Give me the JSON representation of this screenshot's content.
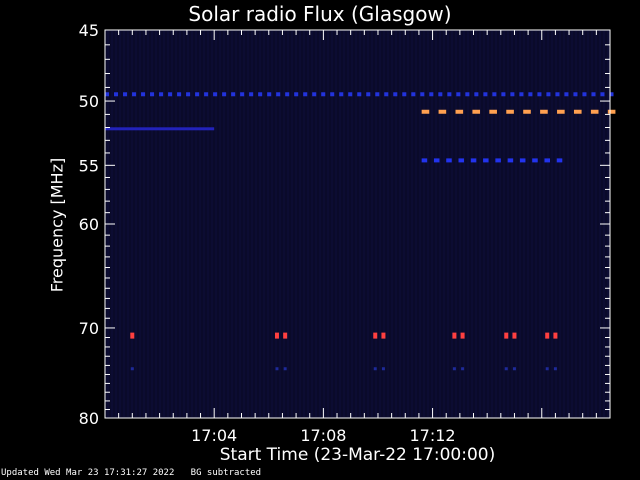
{
  "chart_data": {
    "type": "heatmap",
    "title": "Solar radio Flux (Glasgow)",
    "xlabel": "Start Time (23-Mar-22 17:00:00)",
    "ylabel": "Frequency [MHz]",
    "x_range_minutes": [
      0,
      18.5
    ],
    "y_range_mhz": [
      45,
      80
    ],
    "y_scale": "log",
    "grid": false,
    "x_ticks": [
      {
        "minute": 4,
        "label": "17:04"
      },
      {
        "minute": 8,
        "label": "17:08"
      },
      {
        "minute": 12,
        "label": "17:12"
      }
    ],
    "y_ticks": [
      {
        "mhz": 45,
        "label": "45"
      },
      {
        "mhz": 50,
        "label": "50"
      },
      {
        "mhz": 55,
        "label": "55"
      },
      {
        "mhz": 60,
        "label": "60"
      },
      {
        "mhz": 70,
        "label": "70"
      },
      {
        "mhz": 80,
        "label": "80"
      }
    ],
    "background_color": "#0a0a2a",
    "features": [
      {
        "kind": "dashed_band",
        "mhz": 49.5,
        "start_min": 0,
        "end_min": 18.5,
        "step_min": 0.33,
        "color": "#2233dd"
      },
      {
        "kind": "solid_band",
        "mhz": 52.1,
        "start_min": 0,
        "end_min": 4.0,
        "color": "#2222bb"
      },
      {
        "kind": "dashed_band",
        "mhz": 50.8,
        "start_min": 11.6,
        "end_min": 18.5,
        "step_min": 0.62,
        "color": "#ffa050"
      },
      {
        "kind": "dashed_band",
        "mhz": 54.6,
        "start_min": 11.6,
        "end_min": 16.6,
        "step_min": 0.45,
        "color": "#2233ee"
      },
      {
        "kind": "spots",
        "mhz": 70.8,
        "minutes": [
          1.0,
          6.3,
          6.6,
          9.9,
          10.2,
          12.8,
          13.1,
          14.7,
          15.0,
          16.2,
          16.5
        ],
        "color": "#ff4040"
      }
    ]
  },
  "footer": {
    "updated": "Updated Wed Mar 23 17:31:27 2022",
    "note": "BG subtracted"
  }
}
